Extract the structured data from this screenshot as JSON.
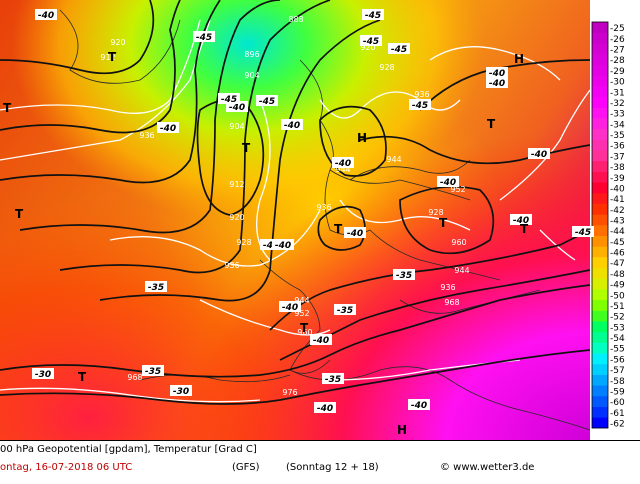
{
  "footer": {
    "line1": "00 hPa Geopotential [gpdam], Temperatur [Grad C]",
    "date": "ontag, 16-07-2018  06 UTC",
    "model": "(GFS)",
    "run": "(Sonntag 12 + 18)",
    "credit": "© www.wetter3.de"
  },
  "legend": {
    "values": [
      "-25",
      "-26",
      "-27",
      "-28",
      "-29",
      "-30",
      "-31",
      "-32",
      "-33",
      "-34",
      "-35",
      "-36",
      "-37",
      "-38",
      "-39",
      "-40",
      "-41",
      "-42",
      "-43",
      "-44",
      "-45",
      "-46",
      "-47",
      "-48",
      "-49",
      "-50",
      "-51",
      "-52",
      "-53",
      "-54",
      "-55",
      "-56",
      "-57",
      "-58",
      "-59",
      "-60",
      "-61",
      "-62"
    ],
    "colors": [
      "#c000c0",
      "#cc00cc",
      "#d400d4",
      "#dc00dc",
      "#e400e4",
      "#ec00ec",
      "#f400f4",
      "#fc00fc",
      "#ff10f0",
      "#ff20e0",
      "#ff30c8",
      "#ff30b0",
      "#ff3098",
      "#ff2070",
      "#ff1050",
      "#ff0030",
      "#ff1818",
      "#ff3000",
      "#ff5000",
      "#ff7000",
      "#ff9000",
      "#ffb000",
      "#ffd000",
      "#f0e000",
      "#d8f000",
      "#b0ff00",
      "#80ff00",
      "#40ff20",
      "#00ff60",
      "#00ff90",
      "#00ffc0",
      "#00f0ff",
      "#00d0ff",
      "#00a8ff",
      "#0080ff",
      "#0058ff",
      "#0030ff",
      "#0000ff"
    ]
  },
  "labels": {
    "geopotential": [
      "920",
      "912",
      "888",
      "896",
      "904",
      "912",
      "920",
      "928",
      "936",
      "944",
      "952",
      "960",
      "968",
      "976",
      "920",
      "928",
      "936",
      "944",
      "952",
      "960",
      "928",
      "936",
      "936",
      "944",
      "944",
      "904",
      "936",
      "968",
      "920"
    ],
    "temperature": [
      "-40",
      "-45",
      "-45",
      "-45",
      "-40",
      "-45",
      "-45",
      "-40",
      "-40",
      "-40",
      "-45",
      "-40",
      "-40",
      "-40",
      "-40",
      "-40",
      "-35",
      "-40",
      "-40",
      "-35",
      "-35",
      "-30",
      "-30",
      "-35",
      "-40",
      "-40",
      "-45",
      "-35",
      "-40",
      "-45",
      "-40",
      "-40"
    ],
    "highs": [
      "H",
      "H",
      "H"
    ],
    "lows": [
      "T",
      "T",
      "T",
      "T",
      "T",
      "T",
      "T",
      "T",
      "T",
      "T"
    ]
  }
}
